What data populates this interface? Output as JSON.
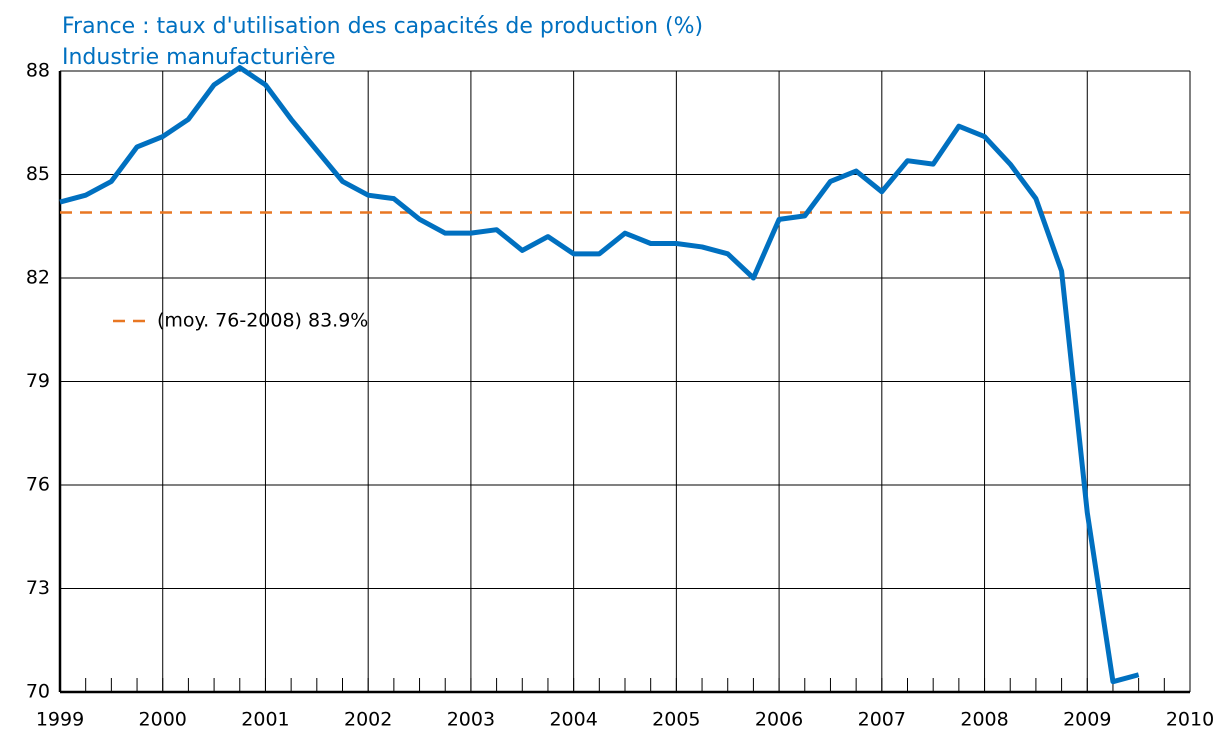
{
  "chart_data": {
    "type": "line",
    "title": "France : taux d'utilisation des capacités de production (%)",
    "subtitle": "Industrie manufacturière",
    "x": [
      1999,
      1999.25,
      1999.5,
      1999.75,
      2000,
      2000.25,
      2000.5,
      2000.75,
      2001,
      2001.25,
      2001.5,
      2001.75,
      2002,
      2002.25,
      2002.5,
      2002.75,
      2003,
      2003.25,
      2003.5,
      2003.75,
      2004,
      2004.25,
      2004.5,
      2004.75,
      2005,
      2005.25,
      2005.5,
      2005.75,
      2006,
      2006.25,
      2006.5,
      2006.75,
      2007,
      2007.25,
      2007.5,
      2007.75,
      2008,
      2008.25,
      2008.5,
      2008.75,
      2009,
      2009.25,
      2009.5
    ],
    "series": [
      {
        "color": "#0070c0",
        "values": [
          84.2,
          84.4,
          84.8,
          85.8,
          86.1,
          86.6,
          87.6,
          88.1,
          87.6,
          86.6,
          85.7,
          84.8,
          84.4,
          84.3,
          83.7,
          83.3,
          83.3,
          83.4,
          82.8,
          83.2,
          82.7,
          82.7,
          83.3,
          83.0,
          83.0,
          82.9,
          82.7,
          82.0,
          83.7,
          83.8,
          84.8,
          85.1,
          84.5,
          85.4,
          85.3,
          86.4,
          86.1,
          85.3,
          84.3,
          82.2,
          75.2,
          70.3,
          70.5
        ]
      }
    ],
    "reference": {
      "name": "(moy. 76-2008) 83.9%",
      "value": 83.9,
      "color": "#e87722"
    },
    "xlim": [
      1999,
      2010
    ],
    "xticks": [
      1999,
      2000,
      2001,
      2002,
      2003,
      2004,
      2005,
      2006,
      2007,
      2008,
      2009,
      2010
    ],
    "ylim": [
      70,
      88
    ],
    "yticks": [
      70,
      73,
      76,
      79,
      82,
      85,
      88
    ],
    "grid": true
  }
}
